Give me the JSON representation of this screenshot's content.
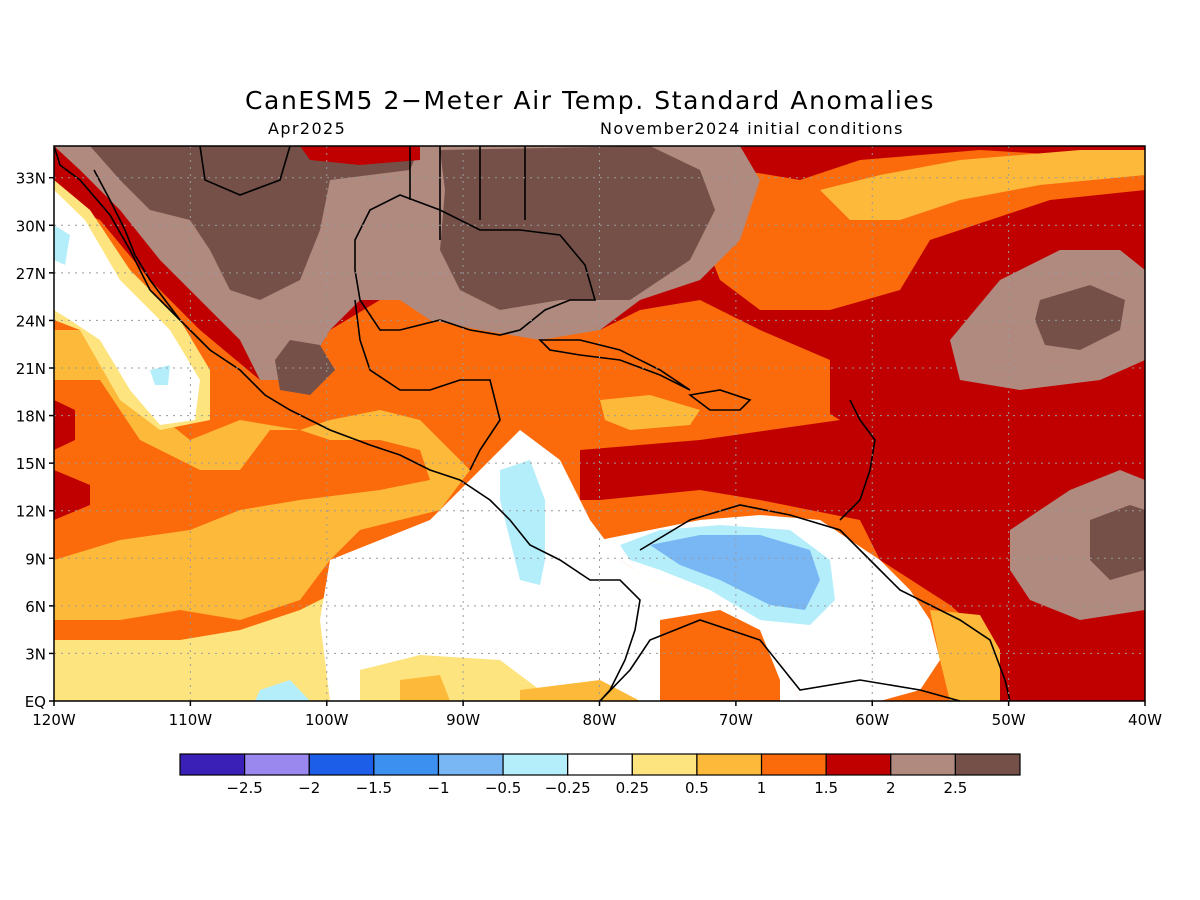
{
  "title": "CanESM5 2−Meter Air Temp. Standard Anomalies",
  "valid_month": "Apr2025",
  "init_conditions": "November2024 initial conditions",
  "lat_labels": [
    "33N",
    "30N",
    "27N",
    "24N",
    "21N",
    "18N",
    "15N",
    "12N",
    "9N",
    "6N",
    "3N",
    "EQ"
  ],
  "lon_labels": [
    "120W",
    "110W",
    "100W",
    "90W",
    "80W",
    "70W",
    "60W",
    "50W",
    "40W"
  ],
  "colorbar": {
    "labels": [
      "−2.5",
      "−2",
      "−1.5",
      "−1",
      "−0.5",
      "−0.25",
      "0.25",
      "0.5",
      "1",
      "1.5",
      "2",
      "2.5"
    ],
    "colors": [
      "#3b20b8",
      "#9b88ef",
      "#1d5ee8",
      "#3c91f0",
      "#78b6f4",
      "#b4eefa",
      "#ffffff",
      "#fee47e",
      "#fdb93a",
      "#fb6b0c",
      "#c00000",
      "#b08a7e",
      "#745048"
    ]
  },
  "legend_colors": {
    "white": "#ffffff",
    "light_yellow": "#fee47e",
    "yellow_orange": "#fdb93a",
    "orange": "#fb6b0c",
    "red": "#c00000",
    "tan": "#b08a7e",
    "brown": "#745048",
    "light_cyan": "#b4eefa",
    "light_blue": "#78b6f4"
  }
}
